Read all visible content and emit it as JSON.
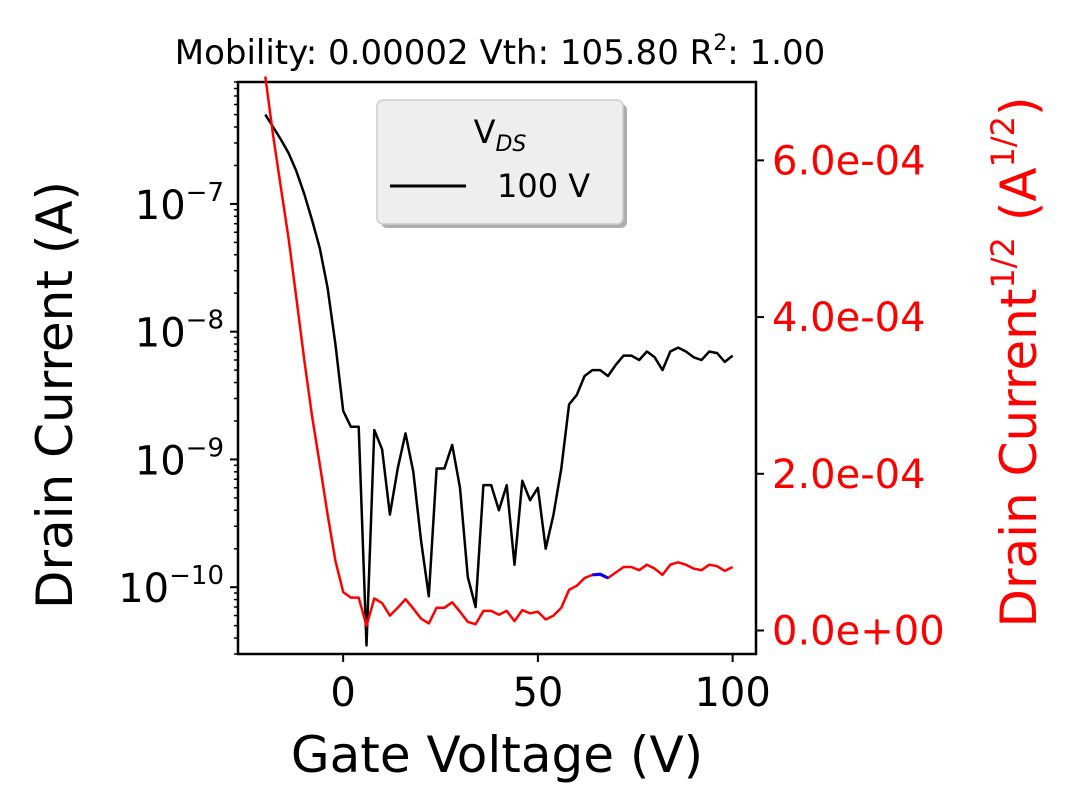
{
  "chart_data": {
    "type": "line",
    "title": "Mobility: 0.00002 Vth: 105.80 R²: 1.00",
    "title_parts": {
      "main": "Mobility: 0.00002 Vth: 105.80 R",
      "sup": "2",
      "rest": ": 1.00"
    },
    "xlabel": "Gate Voltage (V)",
    "ylabel": "Drain Current (A)",
    "y2label": "Drain Current^(1/2) (A^(1/2))",
    "y2label_parts": {
      "a": "Drain Current",
      "b": "1/2",
      "c": " (A",
      "d": "1/2",
      "e": ")"
    },
    "xlim": [
      -27,
      106
    ],
    "ylim_log": [
      3e-11,
      9e-07
    ],
    "y2lim": [
      -3e-05,
      0.0007
    ],
    "x_ticks": [
      0,
      50,
      100
    ],
    "x_tick_labels": [
      "0",
      "50",
      "100"
    ],
    "y_ticks": [
      1e-07,
      1e-08,
      1e-09,
      1e-10
    ],
    "y_tick_labels": [
      {
        "base": "10",
        "exp": "−7"
      },
      {
        "base": "10",
        "exp": "−8"
      },
      {
        "base": "10",
        "exp": "−9"
      },
      {
        "base": "10",
        "exp": "−10"
      }
    ],
    "y2_ticks": [
      0.0,
      0.0002,
      0.0004,
      0.0006
    ],
    "y2_tick_labels": [
      "0.0e+00",
      "2.0e-04",
      "4.0e-04",
      "6.0e-04"
    ],
    "legend": {
      "title_base": "V",
      "title_sub": "DS",
      "entries": [
        "100 V"
      ],
      "placement": "top-center"
    },
    "colors": {
      "current": "#000000",
      "sqrt_current": "#ff0000",
      "fit": "#0000ff"
    },
    "series": [
      {
        "name": "100 V",
        "axis": "left-log",
        "x": [
          -20,
          -18,
          -16,
          -14,
          -12,
          -10,
          -8,
          -6,
          -4,
          -2,
          0,
          2,
          4,
          6,
          8,
          10,
          12,
          14,
          16,
          18,
          20,
          22,
          24,
          26,
          28,
          30,
          32,
          34,
          36,
          38,
          40,
          42,
          44,
          46,
          48,
          50,
          52,
          54,
          56,
          58,
          60,
          62,
          64,
          66,
          68,
          70,
          72,
          74,
          76,
          78,
          80,
          82,
          84,
          86,
          88,
          90,
          92,
          94,
          96,
          98,
          100
        ],
        "y": [
          5e-07,
          4e-07,
          3.2e-07,
          2.5e-07,
          1.8e-07,
          1.2e-07,
          7.5e-08,
          4.5e-08,
          2.2e-08,
          8e-09,
          2.4e-09,
          1.8e-09,
          1.8e-09,
          3.5e-11,
          1.7e-09,
          1.2e-09,
          3.7e-10,
          8.5e-10,
          1.6e-09,
          8e-10,
          2.3e-10,
          8.5e-11,
          8.5e-10,
          8.5e-10,
          1.3e-09,
          6e-10,
          1.2e-10,
          7e-11,
          6.3e-10,
          6.3e-10,
          4e-10,
          6.3e-10,
          1.5e-10,
          6.8e-10,
          4.8e-10,
          6e-10,
          2e-10,
          3.7e-10,
          8.5e-10,
          2.7e-09,
          3.2e-09,
          4.5e-09,
          5e-09,
          5e-09,
          4.5e-09,
          5.5e-09,
          6.5e-09,
          6.5e-09,
          6e-09,
          7e-09,
          6.3e-09,
          5e-09,
          7e-09,
          7.5e-09,
          7e-09,
          6.3e-09,
          6e-09,
          7e-09,
          6.8e-09,
          5.8e-09,
          6.5e-09
        ]
      },
      {
        "name": "",
        "axis": "right-sqrt",
        "x": [
          -20,
          -18,
          -16,
          -14,
          -12,
          -10,
          -8,
          -6,
          -4,
          -2,
          0,
          2,
          4,
          6,
          8,
          10,
          12,
          14,
          16,
          18,
          20,
          22,
          24,
          26,
          28,
          30,
          32,
          34,
          36,
          38,
          40,
          42,
          44,
          46,
          48,
          50,
          52,
          54,
          56,
          58,
          60,
          62,
          64,
          66,
          68,
          70,
          72,
          74,
          76,
          78,
          80,
          82,
          84,
          86,
          88,
          90,
          92,
          94,
          96,
          98,
          100
        ],
        "y": [
          0.000707,
          0.000632,
          0.000566,
          0.0005,
          0.000424,
          0.000346,
          0.000274,
          0.000212,
          0.000148,
          8.9e-05,
          4.9e-05,
          4.2e-05,
          4.2e-05,
          6e-06,
          4.1e-05,
          3.5e-05,
          1.9e-05,
          2.9e-05,
          4e-05,
          2.8e-05,
          1.5e-05,
          9e-06,
          2.9e-05,
          2.9e-05,
          3.6e-05,
          2.4e-05,
          1.1e-05,
          8e-06,
          2.5e-05,
          2.5e-05,
          2e-05,
          2.5e-05,
          1.2e-05,
          2.6e-05,
          2.2e-05,
          2.4e-05,
          1.4e-05,
          1.9e-05,
          2.9e-05,
          5.2e-05,
          5.7e-05,
          6.7e-05,
          7.1e-05,
          7.1e-05,
          6.7e-05,
          7.4e-05,
          8.1e-05,
          8.1e-05,
          7.7e-05,
          8.4e-05,
          7.9e-05,
          7.1e-05,
          8.4e-05,
          8.7e-05,
          8.4e-05,
          7.9e-05,
          7.7e-05,
          8.4e-05,
          8.2e-05,
          7.6e-05,
          8.1e-05
        ]
      },
      {
        "name": "",
        "axis": "right-sqrt",
        "x": [
          64,
          66,
          68
        ],
        "y": [
          7.1e-05,
          7.2e-05,
          6.7e-05
        ]
      }
    ]
  }
}
